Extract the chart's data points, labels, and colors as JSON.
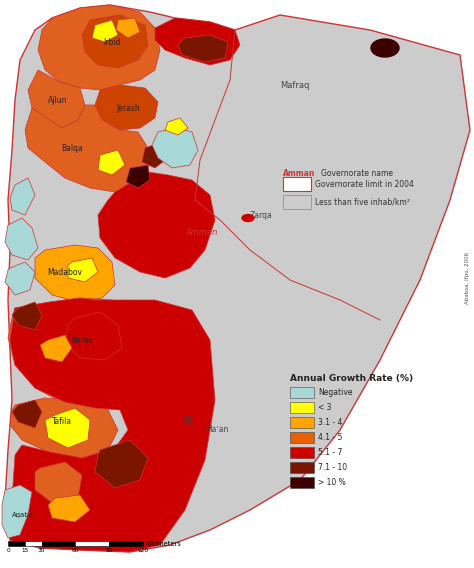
{
  "legend_title": "Annual Growth Rate (%)",
  "legend_items": [
    {
      "label": "Negative",
      "color": "#a8d8d8"
    },
    {
      "label": "< 3",
      "color": "#ffff00"
    },
    {
      "label": "3.1 - 4",
      "color": "#ffa500"
    },
    {
      "label": "4.1 - 5",
      "color": "#e86000"
    },
    {
      "label": "5.1 - 7",
      "color": "#cc0000"
    },
    {
      "label": "7.1 - 10",
      "color": "#7a1500"
    },
    {
      "label": "> 10 %",
      "color": "#3d0000"
    }
  ],
  "background_color": "#ffffff",
  "jordan_fill_light": "#cccccc",
  "jordan_outline_color": "#cc3333",
  "scale_ticks": [
    0,
    15,
    30,
    60,
    90,
    120
  ],
  "scale_label": "Kilometers",
  "credit": "Ababsa, Ifpo, 2006"
}
